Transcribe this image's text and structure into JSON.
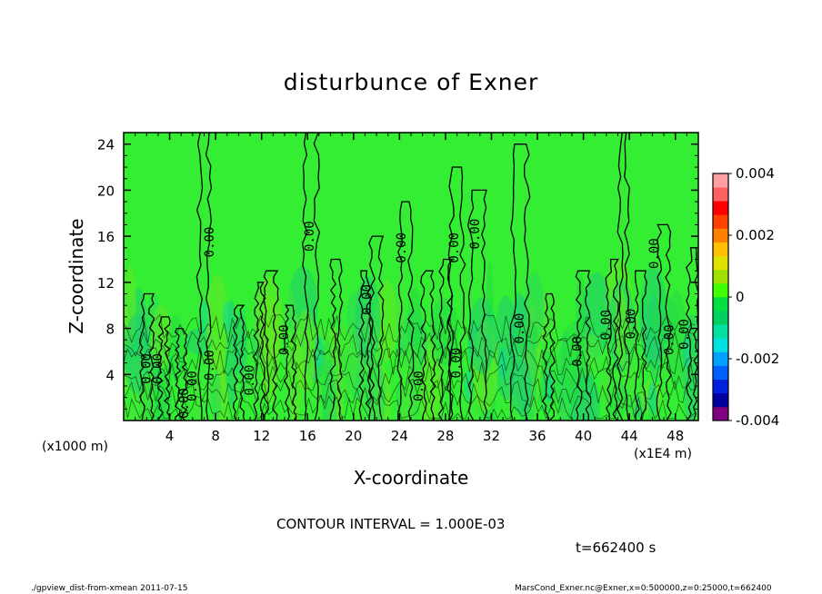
{
  "chart_data": {
    "type": "heatmap",
    "title": "disturbunce of Exner",
    "xlabel": "X-coordinate",
    "ylabel": "Z-coordinate",
    "x_unit_note": "(x1000 m)",
    "x_scale_note": "(x1E4 m)",
    "xlim": [
      0,
      50
    ],
    "ylim": [
      0,
      25
    ],
    "xticks": [
      4,
      8,
      12,
      16,
      20,
      24,
      28,
      32,
      36,
      40,
      44,
      48
    ],
    "yticks": [
      4,
      8,
      12,
      16,
      20,
      24
    ],
    "contour_interval_text": "CONTOUR INTERVAL = 1.000E-03",
    "contour_label": "0.00",
    "contour_label_positions": [
      [
        2,
        4.5
      ],
      [
        3,
        4.5
      ],
      [
        5.3,
        1.5
      ],
      [
        6,
        3
      ],
      [
        7.5,
        4.8
      ],
      [
        7.5,
        15.5
      ],
      [
        11,
        3.5
      ],
      [
        14,
        7
      ],
      [
        16.2,
        16
      ],
      [
        21.2,
        10.5
      ],
      [
        24.2,
        15
      ],
      [
        25.7,
        3
      ],
      [
        28.8,
        15
      ],
      [
        29,
        5
      ],
      [
        30.6,
        16.2
      ],
      [
        34.5,
        8
      ],
      [
        39.5,
        6
      ],
      [
        42,
        8.3
      ],
      [
        44.2,
        8.4
      ],
      [
        46.2,
        14.5
      ],
      [
        47.5,
        7
      ],
      [
        48.8,
        7.5
      ]
    ],
    "colorbar": {
      "min": -0.004,
      "max": 0.004,
      "tick_labels": [
        "0.004",
        "0.002",
        "0",
        "-0.002",
        "-0.004"
      ],
      "tick_values": [
        0.004,
        0.002,
        0,
        -0.002,
        -0.004
      ],
      "colors": [
        "#800080",
        "#0000a0",
        "#0020e0",
        "#0060ff",
        "#00a0ff",
        "#00e0e0",
        "#00e0a0",
        "#00d060",
        "#00e040",
        "#40ff00",
        "#a0e000",
        "#e0e000",
        "#ffc000",
        "#ff8000",
        "#ff4000",
        "#ff0000",
        "#ff6060",
        "#ffa0a0"
      ]
    },
    "background_color": "#33ee33",
    "time_text": "t=662400 s",
    "grid": false,
    "legend": "right"
  },
  "footer": {
    "left": "./gpview_dist-from-xmean  2011-07-15",
    "right": "MarsCond_Exner.nc@Exner,x=0:500000,z=0:25000,t=662400"
  }
}
